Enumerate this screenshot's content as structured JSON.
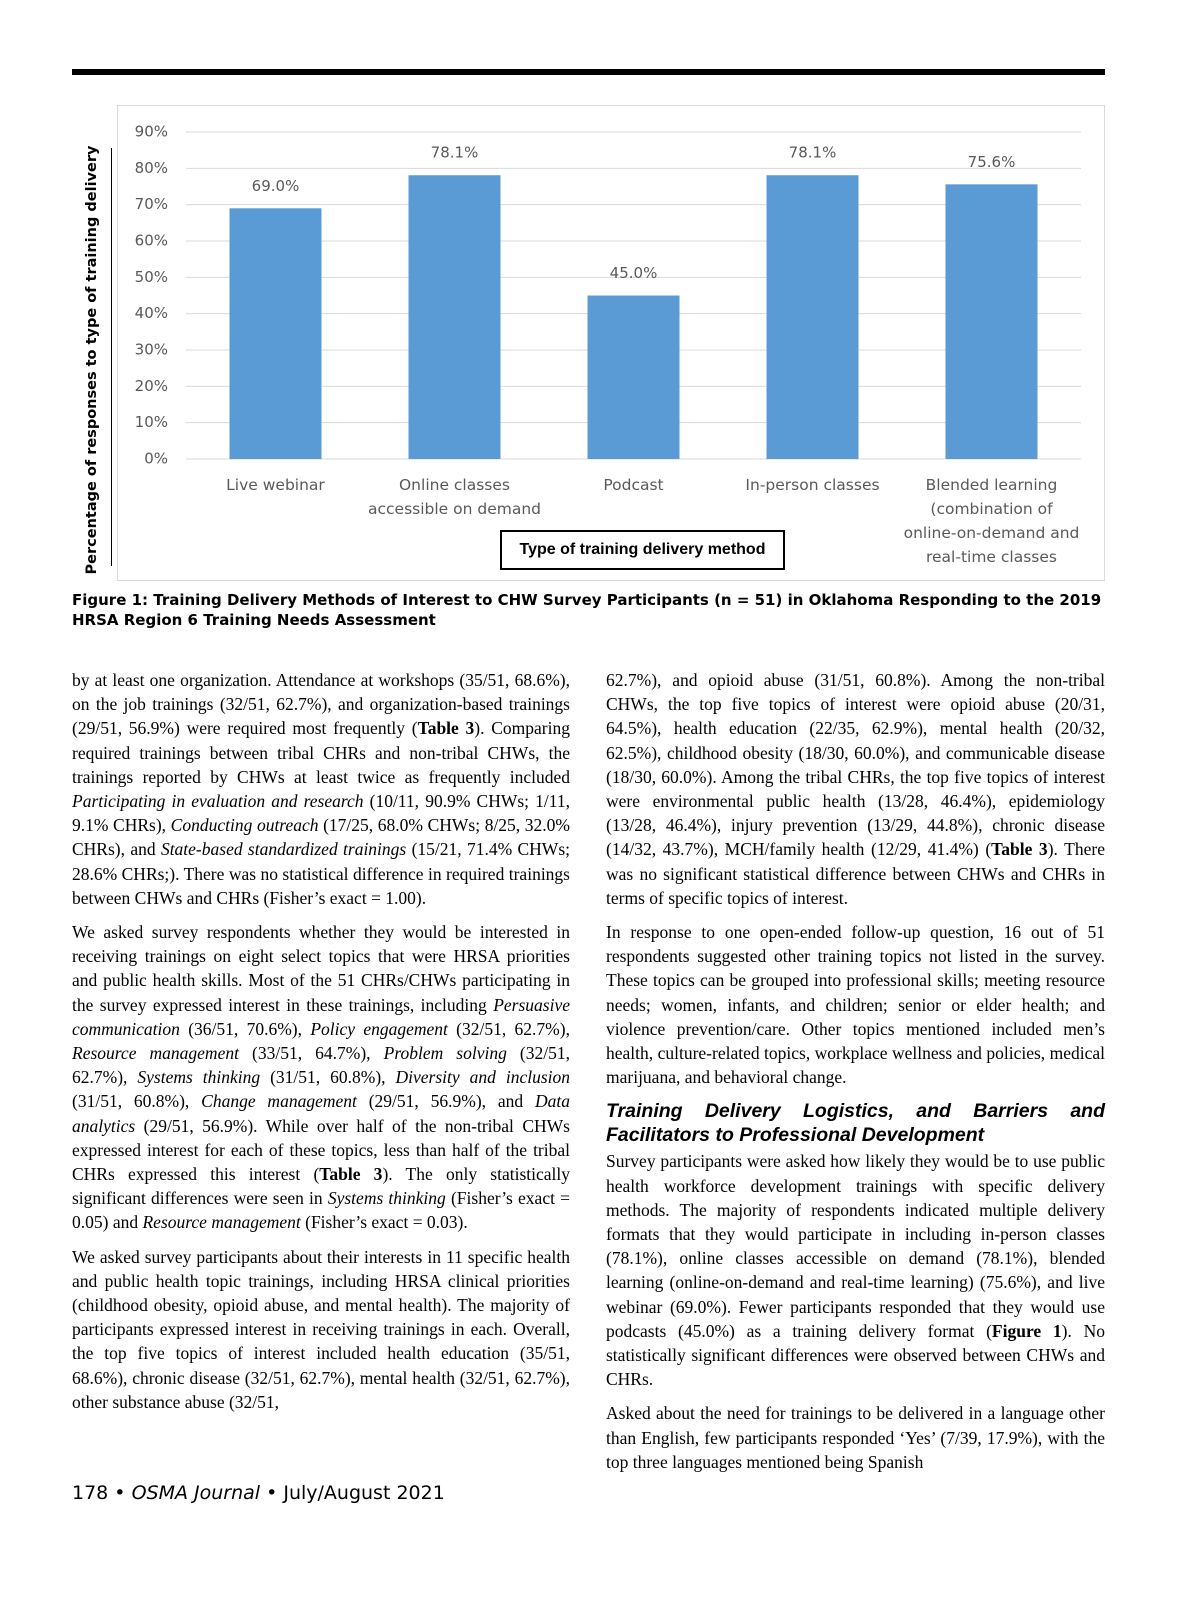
{
  "chart_data": {
    "type": "bar",
    "x_label": "Type of training delivery method",
    "y_label": "Percentage of responses to type of training delivery",
    "categories": [
      "Live webinar",
      "Online classes accessible on demand",
      "Podcast",
      "In-person classes",
      "Blended learning (combination of online-on-demand and real-time classes"
    ],
    "values": [
      69.0,
      78.1,
      45.0,
      78.1,
      75.6
    ],
    "value_labels": [
      "69.0%",
      "78.1%",
      "45.0%",
      "78.1%",
      "75.6%"
    ],
    "color": "#5b9bd5",
    "ylim": [
      0,
      90
    ],
    "yticks": [
      {
        "value": 0,
        "label": "0%"
      },
      {
        "value": 10,
        "label": "10%"
      },
      {
        "value": 20,
        "label": "20%"
      },
      {
        "value": 30,
        "label": "30%"
      },
      {
        "value": 40,
        "label": "40%"
      },
      {
        "value": 50,
        "label": "50%"
      },
      {
        "value": 60,
        "label": "60%"
      },
      {
        "value": 70,
        "label": "70%"
      },
      {
        "value": 80,
        "label": "80%"
      },
      {
        "value": 90,
        "label": "90%"
      }
    ],
    "grid": true
  },
  "figure_caption": "Figure 1: Training Delivery Methods of Interest to CHW Survey Participants (n = 51) in Oklahoma Responding to the 2019 HRSA Region 6 Training Needs Assessment",
  "left_column": [
    [
      "by at least one organization. Attendance at workshops (35/51, 68.6%), on the job trainings (32/51, 62.7%), and organization-based trainings (29/51, 56.9%) were required most frequently (",
      {
        "b": "Table 3"
      },
      "). Comparing required trainings between tribal CHRs and non-tribal CHWs, the trainings reported by CHWs at least twice as frequently included ",
      {
        "i": "Participating in evaluation and research"
      },
      " (10/11, 90.9% CHWs; 1/11, 9.1% CHRs), ",
      {
        "i": "Conducting outreach"
      },
      " (17/25, 68.0% CHWs; 8/25, 32.0% CHRs), and ",
      {
        "i": "State-based standardized trainings"
      },
      " (15/21, 71.4% CHWs; 28.6% CHRs;). There was no statistical difference in required trainings between CHWs and CHRs (Fisher’s exact = 1.00)."
    ],
    [
      "We asked survey respondents whether they would be interested in receiving trainings on eight select topics that were HRSA priorities and public health skills. Most of the 51 CHRs/CHWs participating in the survey expressed interest in these trainings, including ",
      {
        "i": "Persuasive communication"
      },
      " (36/51, 70.6%), ",
      {
        "i": "Policy engagement"
      },
      " (32/51, 62.7%), ",
      {
        "i": "Resource management"
      },
      " (33/51, 64.7%), ",
      {
        "i": "Problem solving"
      },
      " (32/51, 62.7%), ",
      {
        "i": "Systems thinking"
      },
      " (31/51, 60.8%), ",
      {
        "i": "Diversity and inclusion"
      },
      " (31/51, 60.8%), ",
      {
        "i": "Change management"
      },
      " (29/51, 56.9%), and ",
      {
        "i": "Data analytics"
      },
      " (29/51, 56.9%). While over half of the non-tribal CHWs expressed interest for each of these topics, less than half of the tribal CHRs expressed this interest (",
      {
        "b": "Table 3"
      },
      "). The only statistically significant differences were seen in ",
      {
        "i": "Systems thinking"
      },
      " (Fisher’s exact = 0.05) and ",
      {
        "i": "Resource management"
      },
      " (Fisher’s exact = 0.03)."
    ],
    [
      "We asked survey participants about their interests in 11 specific health and public health topic trainings, including HRSA clinical priorities (childhood obesity, opioid abuse, and mental health). The majority of participants expressed interest in receiving trainings in each. Overall, the top five topics of interest included health education (35/51, 68.6%), chronic disease (32/51, 62.7%), mental health (32/51, 62.7%), other substance abuse (32/51,"
    ]
  ],
  "right_column_before": [
    [
      "62.7%), and opioid abuse (31/51, 60.8%). Among the non-tribal CHWs, the top five topics of interest were opioid abuse (20/31, 64.5%), health education (22/35, 62.9%), mental health (20/32, 62.5%), childhood obesity (18/30, 60.0%), and communicable disease (18/30, 60.0%). Among the tribal CHRs, the top five topics of interest were environmental public health (13/28, 46.4%), epidemiology (13/28, 46.4%), injury prevention (13/29, 44.8%), chronic disease (14/32, 43.7%), MCH/family health (12/29, 41.4%) (",
      {
        "b": "Table 3"
      },
      "). There was no significant statistical difference between CHWs and CHRs in terms of specific topics of interest."
    ],
    [
      "In response to one open-ended follow-up question, 16 out of 51 respondents suggested other training topics not listed in the survey. These topics can be grouped into professional skills; meeting resource needs; women, infants, and children; senior or elder health; and violence prevention/care. Other topics mentioned included men’s health, culture-related topics, workplace wellness and policies, medical marijuana, and behavioral change."
    ]
  ],
  "section_heading": "Training Delivery Logistics, and Barriers and Facilitators to Professional Development",
  "right_column_after": [
    [
      "Survey participants were asked how likely they would be to use public health workforce development trainings with specific delivery methods. The majority of respondents indicated multiple delivery formats that they would participate in including in-person classes (78.1%), online classes accessible on demand (78.1%), blended learning (online-on-demand and real-time learning) (75.6%), and live webinar (69.0%). Fewer participants responded that they would use podcasts (45.0%) as a training delivery format (",
      {
        "b": "Figure 1"
      },
      "). No statistically significant differences were observed between CHWs and CHRs."
    ],
    [
      "Asked about the need for trainings to be delivered in a language other than English, few participants responded ‘Yes’ (7/39, 17.9%), with the top three languages mentioned being Spanish"
    ]
  ],
  "footer": [
    "178 • ",
    {
      "i": "OSMA Journal"
    },
    " • July/August 2021"
  ]
}
